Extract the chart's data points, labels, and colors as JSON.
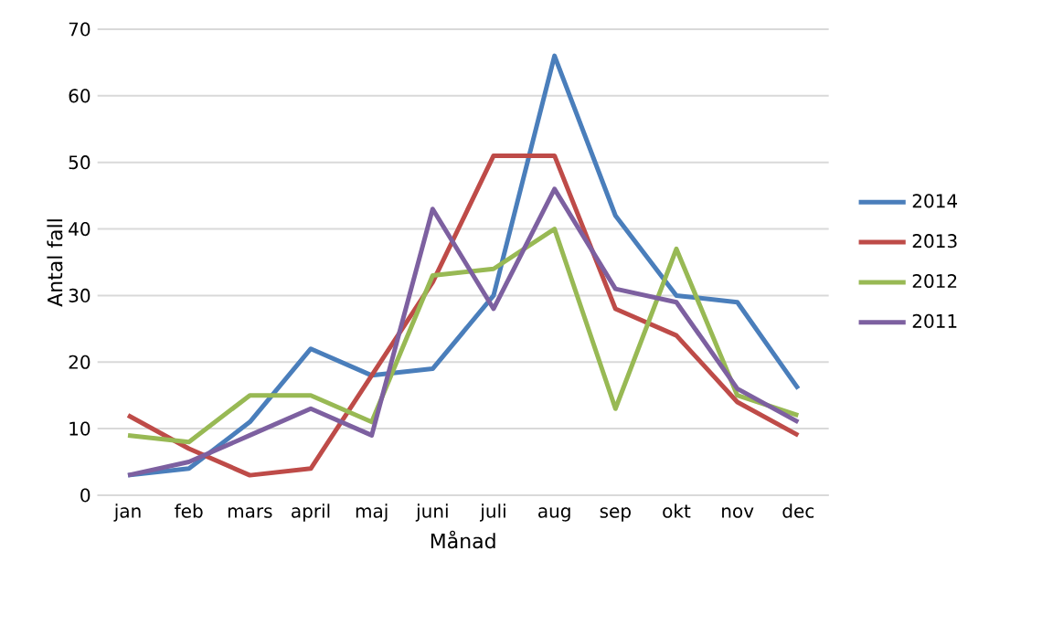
{
  "chart_data": {
    "type": "line",
    "xlabel": "Månad",
    "ylabel": "Antal fall",
    "categories": [
      "jan",
      "feb",
      "mars",
      "april",
      "maj",
      "juni",
      "juli",
      "aug",
      "sep",
      "okt",
      "nov",
      "dec"
    ],
    "series": [
      {
        "name": "2014",
        "color": "#4a7ebb",
        "values": [
          3,
          4,
          11,
          22,
          18,
          19,
          30,
          66,
          42,
          30,
          29,
          16
        ]
      },
      {
        "name": "2013",
        "color": "#be4b48",
        "values": [
          12,
          7,
          3,
          4,
          18,
          32,
          51,
          51,
          28,
          24,
          14,
          9
        ]
      },
      {
        "name": "2012",
        "color": "#98b954",
        "values": [
          9,
          8,
          15,
          15,
          11,
          33,
          34,
          40,
          13,
          37,
          15,
          12
        ]
      },
      {
        "name": "2011",
        "color": "#7d60a0",
        "values": [
          3,
          5,
          9,
          13,
          9,
          43,
          28,
          46,
          31,
          29,
          16,
          11
        ]
      }
    ],
    "ylim": [
      0,
      70
    ],
    "yticks": [
      0,
      10,
      20,
      30,
      40,
      50,
      60,
      70
    ],
    "grid": "y",
    "legend": "right",
    "marker": "none",
    "line_style": "solid"
  }
}
